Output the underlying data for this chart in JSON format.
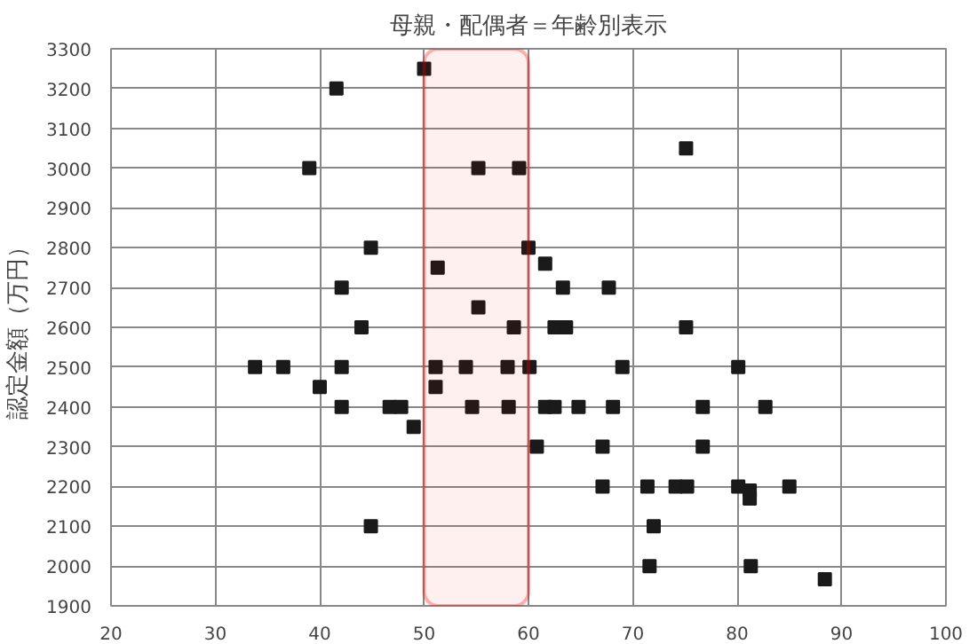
{
  "chart_data": {
    "type": "scatter",
    "title": "母親・配偶者＝年齢別表示",
    "ylabel": "認定金額（万円）",
    "x": [
      41.6,
      39,
      44.9,
      42.1,
      44,
      33.8,
      36.5,
      42.1,
      40,
      42.1,
      46.7,
      47.8,
      49,
      44.9,
      50,
      55.2,
      59.1,
      60,
      51.3,
      61.6,
      63.3,
      67.7,
      55.2,
      58.6,
      62.5,
      63.6,
      51.1,
      54,
      58,
      60.1,
      69,
      51.1,
      54.6,
      58.1,
      61.6,
      62.5,
      64.8,
      68.1,
      60.8,
      67.1,
      67.1,
      71.4,
      74.1,
      72,
      71.6,
      75.1,
      75.1,
      80.1,
      76.7,
      82.7,
      76.7,
      75.2,
      80.1,
      81.2,
      81.2,
      85,
      81.3,
      88.4
    ],
    "series": [
      {
        "color": "#1a1a1a",
        "values": [
          3200,
          3000,
          2800,
          2700,
          2600,
          2500,
          2500,
          2500,
          2450,
          2400,
          2400,
          2400,
          2350,
          2100,
          3250,
          3000,
          3000,
          2800,
          2750,
          2760,
          2700,
          2700,
          2650,
          2600,
          2600,
          2600,
          2500,
          2500,
          2500,
          2500,
          2500,
          2450,
          2400,
          2400,
          2400,
          2400,
          2400,
          2400,
          2300,
          2300,
          2200,
          2200,
          2200,
          2100,
          2000,
          3050,
          2600,
          2500,
          2400,
          2400,
          2300,
          2200,
          2200,
          2190,
          2170,
          2200,
          2000,
          1967
        ]
      }
    ],
    "marker": "square",
    "grid": true,
    "xlim": [
      20,
      100
    ],
    "xticks": [
      20,
      30,
      40,
      50,
      60,
      70,
      80,
      90,
      100
    ],
    "ylim": [
      1900,
      3300
    ],
    "yticks": [
      1900,
      2000,
      2100,
      2200,
      2300,
      2400,
      2500,
      2600,
      2700,
      2800,
      2900,
      3000,
      3100,
      3200,
      3300
    ],
    "bands": [
      {
        "axis": "x",
        "from": 50,
        "to": 60,
        "color": "#ff0000"
      }
    ]
  }
}
